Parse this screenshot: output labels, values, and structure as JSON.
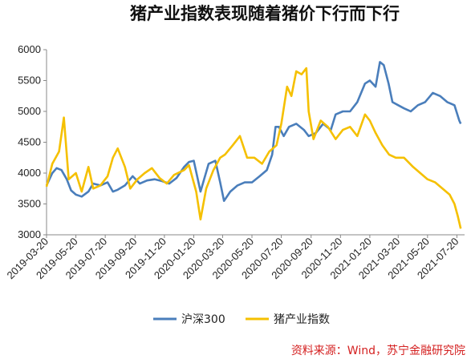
{
  "chart_data": {
    "type": "line",
    "title": "猪产业指数表现随着猪价下行而下行",
    "source": "资料来源：Wind，苏宁金融研究院",
    "ylim": [
      3000,
      6000
    ],
    "yticks": [
      "3000",
      "3500",
      "4000",
      "4500",
      "5000",
      "5500",
      "6000"
    ],
    "xlim": [
      "2019-03-20",
      "2021-08-05"
    ],
    "xticks": [
      "2019-03-20",
      "2019-05-20",
      "2019-07-20",
      "2019-09-20",
      "2019-11-20",
      "2020-01-20",
      "2020-03-20",
      "2020-05-20",
      "2020-07-20",
      "2020-09-20",
      "2020-11-20",
      "2021-01-20",
      "2021-03-20",
      "2021-05-20",
      "2021-07-20"
    ],
    "grid": false,
    "legend_position": "bottom-center",
    "series": [
      {
        "name": "沪深300",
        "color": "#4a7ebb",
        "points": [
          [
            "2019-03-20",
            3800
          ],
          [
            "2019-04-01",
            4000
          ],
          [
            "2019-04-10",
            4080
          ],
          [
            "2019-04-20",
            4050
          ],
          [
            "2019-05-01",
            3900
          ],
          [
            "2019-05-10",
            3720
          ],
          [
            "2019-05-20",
            3650
          ],
          [
            "2019-06-01",
            3620
          ],
          [
            "2019-06-15",
            3700
          ],
          [
            "2019-06-25",
            3830
          ],
          [
            "2019-07-10",
            3800
          ],
          [
            "2019-07-25",
            3850
          ],
          [
            "2019-08-05",
            3700
          ],
          [
            "2019-08-15",
            3730
          ],
          [
            "2019-08-30",
            3800
          ],
          [
            "2019-09-15",
            3950
          ],
          [
            "2019-09-30",
            3830
          ],
          [
            "2019-10-15",
            3880
          ],
          [
            "2019-10-31",
            3900
          ],
          [
            "2019-11-15",
            3870
          ],
          [
            "2019-11-30",
            3830
          ],
          [
            "2019-12-15",
            3920
          ],
          [
            "2019-12-31",
            4100
          ],
          [
            "2020-01-10",
            4180
          ],
          [
            "2020-01-20",
            4200
          ],
          [
            "2020-02-03",
            3700
          ],
          [
            "2020-02-20",
            4150
          ],
          [
            "2020-03-05",
            4200
          ],
          [
            "2020-03-15",
            3850
          ],
          [
            "2020-03-23",
            3550
          ],
          [
            "2020-04-05",
            3700
          ],
          [
            "2020-04-20",
            3800
          ],
          [
            "2020-05-05",
            3850
          ],
          [
            "2020-05-20",
            3850
          ],
          [
            "2020-06-05",
            3950
          ],
          [
            "2020-06-20",
            4050
          ],
          [
            "2020-07-01",
            4300
          ],
          [
            "2020-07-08",
            4750
          ],
          [
            "2020-07-15",
            4750
          ],
          [
            "2020-07-25",
            4600
          ],
          [
            "2020-08-05",
            4750
          ],
          [
            "2020-08-20",
            4800
          ],
          [
            "2020-09-05",
            4700
          ],
          [
            "2020-09-15",
            4600
          ],
          [
            "2020-09-30",
            4650
          ],
          [
            "2020-10-15",
            4800
          ],
          [
            "2020-10-31",
            4700
          ],
          [
            "2020-11-10",
            4950
          ],
          [
            "2020-11-25",
            5000
          ],
          [
            "2020-12-10",
            5000
          ],
          [
            "2020-12-25",
            5150
          ],
          [
            "2021-01-10",
            5450
          ],
          [
            "2021-01-20",
            5500
          ],
          [
            "2021-02-01",
            5400
          ],
          [
            "2021-02-10",
            5800
          ],
          [
            "2021-02-18",
            5750
          ],
          [
            "2021-02-28",
            5450
          ],
          [
            "2021-03-08",
            5150
          ],
          [
            "2021-03-20",
            5100
          ],
          [
            "2021-04-01",
            5050
          ],
          [
            "2021-04-15",
            5000
          ],
          [
            "2021-04-30",
            5100
          ],
          [
            "2021-05-15",
            5150
          ],
          [
            "2021-05-31",
            5300
          ],
          [
            "2021-06-15",
            5250
          ],
          [
            "2021-06-30",
            5150
          ],
          [
            "2021-07-15",
            5100
          ],
          [
            "2021-07-25",
            4850
          ],
          [
            "2021-07-28",
            4800
          ]
        ]
      },
      {
        "name": "猪产业指数",
        "color": "#f5c000",
        "points": [
          [
            "2019-03-20",
            3780
          ],
          [
            "2019-04-01",
            4150
          ],
          [
            "2019-04-15",
            4350
          ],
          [
            "2019-04-25",
            4900
          ],
          [
            "2019-05-05",
            3900
          ],
          [
            "2019-05-20",
            4000
          ],
          [
            "2019-06-01",
            3700
          ],
          [
            "2019-06-15",
            4100
          ],
          [
            "2019-06-25",
            3750
          ],
          [
            "2019-07-10",
            3800
          ],
          [
            "2019-07-25",
            3950
          ],
          [
            "2019-08-05",
            4250
          ],
          [
            "2019-08-15",
            4400
          ],
          [
            "2019-08-30",
            4100
          ],
          [
            "2019-09-10",
            3750
          ],
          [
            "2019-09-25",
            3900
          ],
          [
            "2019-10-10",
            4000
          ],
          [
            "2019-10-25",
            4080
          ],
          [
            "2019-11-10",
            3920
          ],
          [
            "2019-11-25",
            3830
          ],
          [
            "2019-12-10",
            3970
          ],
          [
            "2019-12-31",
            4050
          ],
          [
            "2020-01-10",
            4130
          ],
          [
            "2020-01-25",
            3700
          ],
          [
            "2020-02-03",
            3250
          ],
          [
            "2020-02-15",
            3750
          ],
          [
            "2020-03-01",
            4050
          ],
          [
            "2020-03-15",
            4250
          ],
          [
            "2020-03-25",
            4300
          ],
          [
            "2020-04-10",
            4450
          ],
          [
            "2020-04-25",
            4600
          ],
          [
            "2020-05-10",
            4250
          ],
          [
            "2020-05-25",
            4250
          ],
          [
            "2020-06-10",
            4150
          ],
          [
            "2020-06-25",
            4350
          ],
          [
            "2020-07-10",
            4450
          ],
          [
            "2020-07-20",
            4800
          ],
          [
            "2020-08-01",
            5400
          ],
          [
            "2020-08-10",
            5250
          ],
          [
            "2020-08-20",
            5650
          ],
          [
            "2020-08-31",
            5600
          ],
          [
            "2020-09-10",
            5700
          ],
          [
            "2020-09-15",
            5000
          ],
          [
            "2020-09-25",
            4550
          ],
          [
            "2020-10-10",
            4850
          ],
          [
            "2020-10-25",
            4750
          ],
          [
            "2020-11-10",
            4550
          ],
          [
            "2020-11-25",
            4700
          ],
          [
            "2020-12-10",
            4750
          ],
          [
            "2020-12-25",
            4600
          ],
          [
            "2021-01-10",
            4950
          ],
          [
            "2021-01-20",
            4850
          ],
          [
            "2021-02-01",
            4650
          ],
          [
            "2021-02-15",
            4450
          ],
          [
            "2021-03-01",
            4300
          ],
          [
            "2021-03-15",
            4250
          ],
          [
            "2021-04-01",
            4250
          ],
          [
            "2021-04-20",
            4100
          ],
          [
            "2021-05-05",
            4000
          ],
          [
            "2021-05-20",
            3900
          ],
          [
            "2021-06-05",
            3850
          ],
          [
            "2021-06-20",
            3750
          ],
          [
            "2021-07-05",
            3650
          ],
          [
            "2021-07-15",
            3500
          ],
          [
            "2021-07-22",
            3300
          ],
          [
            "2021-07-28",
            3100
          ]
        ]
      }
    ]
  }
}
